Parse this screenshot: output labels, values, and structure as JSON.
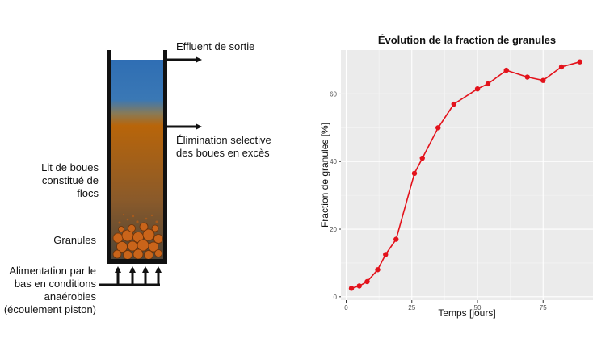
{
  "diagram": {
    "outlet_label": "Effluent de sortie",
    "excess_label_line1": "Élimination selective",
    "excess_label_line2": "des boues en excès",
    "bed_label_line1": "Lit de boues",
    "bed_label_line2": "constitué de",
    "bed_label_line3": "flocs",
    "granules_label": "Granules",
    "feed_label_line1": "Alimentation par le",
    "feed_label_line2": "bas en conditions",
    "feed_label_line3": "anaérobies",
    "feed_label_line4": "(écoulement piston)",
    "colors": {
      "water": "#2e6fb3",
      "sludge": "#b8650a",
      "granule": "#c9641a",
      "wall": "#111111"
    }
  },
  "chart_data": {
    "type": "line",
    "title": "Évolution de la fraction de granules",
    "xlabel": "Temps [jours]",
    "ylabel": "Fraction de granules [%]",
    "xlim": [
      -2,
      94
    ],
    "ylim": [
      -1,
      73
    ],
    "xticks": [
      0,
      25,
      50,
      75
    ],
    "yticks": [
      0,
      20,
      40,
      60
    ],
    "grid": true,
    "series": [
      {
        "color": "#e3121b",
        "x": [
          2,
          5,
          8,
          12,
          15,
          19,
          26,
          29,
          35,
          41,
          50,
          54,
          61,
          69,
          75,
          82,
          89
        ],
        "y": [
          2.5,
          3.2,
          4.5,
          8,
          12.5,
          17,
          36.5,
          41,
          50,
          57,
          61.5,
          63,
          67,
          65,
          64,
          68,
          69.5
        ]
      }
    ]
  }
}
